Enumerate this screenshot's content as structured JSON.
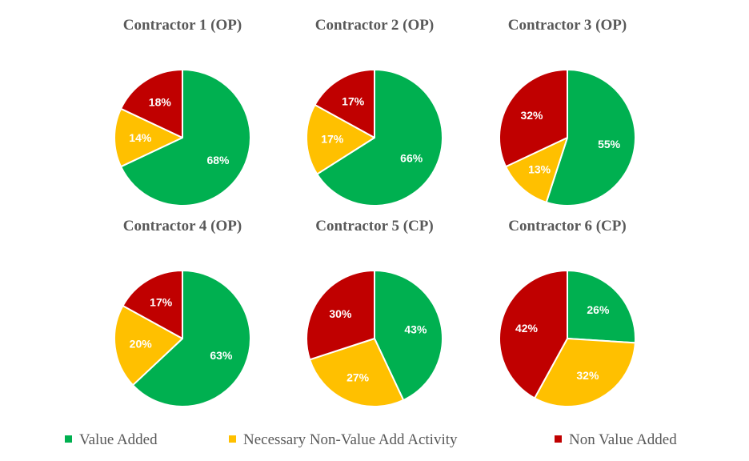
{
  "chart_data": {
    "type": "pie",
    "charts": [
      {
        "title": "Contractor 1 (OP)",
        "values": [
          68,
          14,
          18
        ]
      },
      {
        "title": "Contractor 2 (OP)",
        "values": [
          66,
          17,
          17
        ]
      },
      {
        "title": "Contractor 3 (OP)",
        "values": [
          55,
          13,
          32
        ]
      },
      {
        "title": "Contractor 4 (OP)",
        "values": [
          63,
          20,
          17
        ]
      },
      {
        "title": "Contractor 5 (CP)",
        "values": [
          43,
          27,
          30
        ]
      },
      {
        "title": "Contractor 6 (CP)",
        "values": [
          26,
          32,
          42
        ]
      }
    ],
    "categories": [
      "Value Added",
      "Necessary Non-Value Add Activity",
      "Non Value Added"
    ],
    "colors": [
      "#00b050",
      "#ffc000",
      "#c00000"
    ],
    "value_format": "percent",
    "legend_position": "bottom"
  }
}
